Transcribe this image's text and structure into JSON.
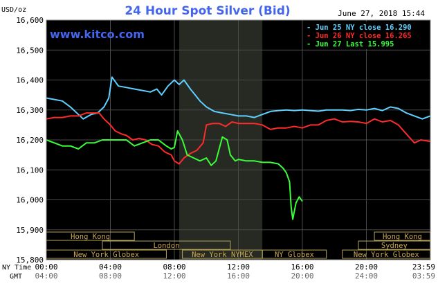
{
  "header": {
    "unit": "USD/oz",
    "title": "24 Hour Spot Silver (Bid)",
    "datetime": "June 27, 2018 15:44",
    "watermark": "www.kitco.com"
  },
  "legend": [
    {
      "label": "Jun 25 NY close 16.290",
      "color": "#5fd0ff"
    },
    {
      "label": "Jun 26 NY close 16.265",
      "color": "#ff2a2a"
    },
    {
      "label": "Jun 27 Last 15.995",
      "color": "#39ff39"
    }
  ],
  "axis_time": {
    "row1_label": "NY Time",
    "row2_label": "GMT",
    "ny": [
      "00:00",
      "04:00",
      "08:00",
      "12:00",
      "16:00",
      "20:00",
      "23:59"
    ],
    "gmt": [
      "04:00",
      "08:00",
      "12:00",
      "16:00",
      "20:00",
      "24:00",
      "03:59"
    ]
  },
  "sessions": {
    "row1": [
      {
        "label": "Hong Kong",
        "start": 0,
        "end": 5.5
      },
      {
        "label": "Hong Kong",
        "start": 20.5,
        "end": 23.99
      }
    ],
    "row2": [
      {
        "label": "London",
        "start": 3.5,
        "end": 11.5
      },
      {
        "label": "Sydney",
        "start": 19.5,
        "end": 23.99
      }
    ],
    "row3": [
      {
        "label": "New York Globex",
        "start": 0,
        "end": 7.5
      },
      {
        "label": "New York NYMEX",
        "start": 8.5,
        "end": 13.5
      },
      {
        "label": "NY Globex",
        "start": 13.5,
        "end": 17.5
      },
      {
        "label": "New York Globex",
        "start": 18.5,
        "end": 23.99
      }
    ]
  },
  "chart_data": {
    "type": "line",
    "title": "24 Hour Spot Silver (Bid)",
    "ylabel": "USD/oz",
    "xlabel": "NY Time",
    "xlim": [
      0,
      24
    ],
    "ylim": [
      15.8,
      16.6
    ],
    "yticks": [
      15.8,
      15.9,
      16.0,
      16.1,
      16.2,
      16.3,
      16.4,
      16.5,
      16.6
    ],
    "ytick_labels": [
      "15,800",
      "15,900",
      "16,000",
      "16,100",
      "16,200",
      "16,300",
      "16,400",
      "16,500",
      "16,600"
    ],
    "grid": true,
    "legend_position": "top-right",
    "shaded_region": [
      8.3,
      13.5
    ],
    "series": [
      {
        "name": "Jun 25 NY close 16.290",
        "color": "#5fd0ff",
        "points": [
          [
            0,
            16.34
          ],
          [
            0.5,
            16.335
          ],
          [
            1,
            16.33
          ],
          [
            1.5,
            16.31
          ],
          [
            2,
            16.285
          ],
          [
            2.3,
            16.27
          ],
          [
            2.8,
            16.285
          ],
          [
            3.2,
            16.29
          ],
          [
            3.6,
            16.31
          ],
          [
            3.9,
            16.34
          ],
          [
            4.1,
            16.41
          ],
          [
            4.5,
            16.38
          ],
          [
            5,
            16.375
          ],
          [
            5.5,
            16.37
          ],
          [
            6,
            16.365
          ],
          [
            6.5,
            16.36
          ],
          [
            6.9,
            16.37
          ],
          [
            7.2,
            16.35
          ],
          [
            7.6,
            16.38
          ],
          [
            8,
            16.4
          ],
          [
            8.3,
            16.385
          ],
          [
            8.6,
            16.4
          ],
          [
            9,
            16.37
          ],
          [
            9.3,
            16.35
          ],
          [
            9.6,
            16.33
          ],
          [
            10,
            16.31
          ],
          [
            10.5,
            16.295
          ],
          [
            11,
            16.29
          ],
          [
            11.5,
            16.285
          ],
          [
            12,
            16.28
          ],
          [
            12.5,
            16.28
          ],
          [
            13,
            16.275
          ],
          [
            13.5,
            16.285
          ],
          [
            14,
            16.295
          ],
          [
            14.5,
            16.298
          ],
          [
            15,
            16.3
          ],
          [
            15.5,
            16.298
          ],
          [
            16,
            16.3
          ],
          [
            16.5,
            16.298
          ],
          [
            17,
            16.296
          ],
          [
            17.5,
            16.3
          ],
          [
            18,
            16.3
          ],
          [
            18.5,
            16.3
          ],
          [
            19,
            16.298
          ],
          [
            19.5,
            16.302
          ],
          [
            20,
            16.3
          ],
          [
            20.5,
            16.305
          ],
          [
            21,
            16.298
          ],
          [
            21.5,
            16.31
          ],
          [
            22,
            16.305
          ],
          [
            22.5,
            16.29
          ],
          [
            23,
            16.28
          ],
          [
            23.5,
            16.27
          ],
          [
            23.99,
            16.28
          ]
        ]
      },
      {
        "name": "Jun 26 NY close 16.265",
        "color": "#ff2a2a",
        "points": [
          [
            0,
            16.27
          ],
          [
            0.5,
            16.275
          ],
          [
            1,
            16.275
          ],
          [
            1.5,
            16.28
          ],
          [
            2,
            16.28
          ],
          [
            2.5,
            16.29
          ],
          [
            3,
            16.29
          ],
          [
            3.3,
            16.29
          ],
          [
            3.6,
            16.27
          ],
          [
            4,
            16.25
          ],
          [
            4.3,
            16.23
          ],
          [
            4.7,
            16.22
          ],
          [
            5,
            16.215
          ],
          [
            5.4,
            16.2
          ],
          [
            5.8,
            16.205
          ],
          [
            6.2,
            16.2
          ],
          [
            6.6,
            16.185
          ],
          [
            7,
            16.18
          ],
          [
            7.4,
            16.16
          ],
          [
            7.8,
            16.15
          ],
          [
            8,
            16.13
          ],
          [
            8.3,
            16.12
          ],
          [
            8.6,
            16.14
          ],
          [
            9,
            16.155
          ],
          [
            9.4,
            16.165
          ],
          [
            9.8,
            16.19
          ],
          [
            10,
            16.25
          ],
          [
            10.4,
            16.255
          ],
          [
            10.8,
            16.255
          ],
          [
            11.2,
            16.245
          ],
          [
            11.6,
            16.26
          ],
          [
            12,
            16.255
          ],
          [
            12.5,
            16.255
          ],
          [
            13,
            16.255
          ],
          [
            13.5,
            16.25
          ],
          [
            14,
            16.235
          ],
          [
            14.5,
            16.24
          ],
          [
            15,
            16.24
          ],
          [
            15.5,
            16.245
          ],
          [
            16,
            16.24
          ],
          [
            16.5,
            16.25
          ],
          [
            17,
            16.25
          ],
          [
            17.5,
            16.265
          ],
          [
            18,
            16.27
          ],
          [
            18.5,
            16.26
          ],
          [
            19,
            16.262
          ],
          [
            19.5,
            16.26
          ],
          [
            20,
            16.255
          ],
          [
            20.5,
            16.27
          ],
          [
            21,
            16.26
          ],
          [
            21.5,
            16.265
          ],
          [
            22,
            16.25
          ],
          [
            22.5,
            16.22
          ],
          [
            23,
            16.19
          ],
          [
            23.4,
            16.2
          ],
          [
            23.99,
            16.195
          ]
        ]
      },
      {
        "name": "Jun 27 Last 15.995",
        "color": "#39ff39",
        "points": [
          [
            0,
            16.2
          ],
          [
            0.5,
            16.19
          ],
          [
            1,
            16.18
          ],
          [
            1.5,
            16.18
          ],
          [
            2,
            16.17
          ],
          [
            2.5,
            16.19
          ],
          [
            3,
            16.19
          ],
          [
            3.5,
            16.2
          ],
          [
            4,
            16.2
          ],
          [
            4.5,
            16.2
          ],
          [
            5,
            16.2
          ],
          [
            5.5,
            16.18
          ],
          [
            6,
            16.19
          ],
          [
            6.5,
            16.2
          ],
          [
            7,
            16.2
          ],
          [
            7.5,
            16.18
          ],
          [
            7.8,
            16.17
          ],
          [
            8,
            16.175
          ],
          [
            8.2,
            16.23
          ],
          [
            8.5,
            16.2
          ],
          [
            8.8,
            16.15
          ],
          [
            9.2,
            16.14
          ],
          [
            9.6,
            16.13
          ],
          [
            10,
            16.14
          ],
          [
            10.3,
            16.115
          ],
          [
            10.6,
            16.13
          ],
          [
            11,
            16.21
          ],
          [
            11.3,
            16.2
          ],
          [
            11.5,
            16.15
          ],
          [
            11.8,
            16.13
          ],
          [
            12,
            16.135
          ],
          [
            12.5,
            16.13
          ],
          [
            13,
            16.13
          ],
          [
            13.5,
            16.125
          ],
          [
            14,
            16.125
          ],
          [
            14.5,
            16.12
          ],
          [
            14.8,
            16.105
          ],
          [
            15,
            16.09
          ],
          [
            15.2,
            16.06
          ],
          [
            15.3,
            15.975
          ],
          [
            15.4,
            15.935
          ],
          [
            15.6,
            15.99
          ],
          [
            15.8,
            16.01
          ],
          [
            16,
            15.995
          ]
        ]
      }
    ]
  }
}
